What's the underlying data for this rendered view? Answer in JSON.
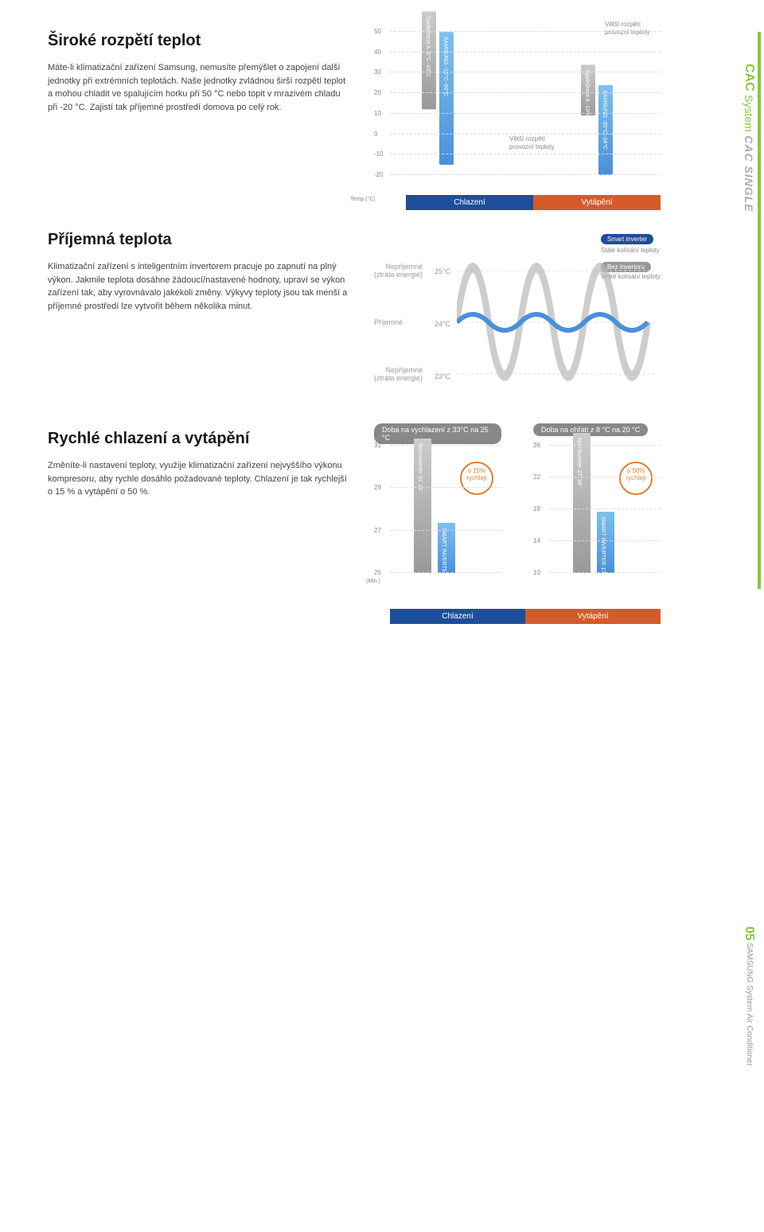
{
  "sidebar": {
    "cac": "CAC",
    "system": "System",
    "cacsingle": "CAC SINGLE"
  },
  "section1": {
    "title": "Široké rozpětí teplot",
    "body": "Máte-li klimatizační zařízení Samsung, nemusíte přemýšlet o zapojení další jednotky při extrémních teplotách. Naše jednotky zvládnou širší rozpětí teplot a mohou chladit ve spalujícím horku při 50 °C nebo topit v mrazivém chladu při -20 °C. Zajistí tak příjemné prostředí domova po celý rok.",
    "chart": {
      "type": "bar",
      "yticks": [
        -20,
        -10,
        0,
        10,
        20,
        30,
        40,
        50
      ],
      "yaxis_label": "Temp.(°C)",
      "anno_top": "Větší rozpětí provozní teploty",
      "anno_mid": "Větší rozpětí provozní teploty",
      "cooling": {
        "compA": {
          "label": "Společnost A",
          "range": "-5°C~43°C",
          "low": -5,
          "high": 43,
          "color": "#aaaaaa"
        },
        "samsung": {
          "label": "SAMSUNG",
          "range": "-15°C~50°C",
          "low": -15,
          "high": 50,
          "color": "#4a90d9"
        }
      },
      "heating": {
        "compA": {
          "label": "Společnost A",
          "range": "-10°C~15°C",
          "low": -10,
          "high": 15,
          "color": "#aaaaaa"
        },
        "samsung": {
          "label": "SAMSUNG",
          "range": "-20°C~24°C",
          "low": -20,
          "high": 24,
          "color": "#4a90d9"
        }
      },
      "legend_cooling": "Chlazení",
      "legend_heating": "Vytápění",
      "legend_cooling_bg": "#1d4e9a",
      "legend_heating_bg": "#d45a2a"
    }
  },
  "section2": {
    "title": "Příjemná teplota",
    "body": "Klimatizační zařízení s inteligentním invertorem pracuje po zapnutí na plný výkon. Jakmile teplota dosáhne žádoucí/nastavené hodnoty, upraví se výkon zařízení tak, aby vyrovnávalo jakékoli změny. Výkyvy teploty jsou tak menší a příjemné prostředí lze vytvořit během několika minut.",
    "chart": {
      "smart_pill": "Smart inverter",
      "smart_desc": "Stálé kolísání teploty",
      "noninv_pill": "Bez invertoru",
      "noninv_desc": "Velké kolísání teploty",
      "rows": {
        "top": {
          "label": "Nepříjemné",
          "sub": "(ztráta energie)",
          "temp": "25°C"
        },
        "mid": {
          "label": "Příjemné",
          "temp": "24°C"
        },
        "bot": {
          "label": "Nepříjemné",
          "sub": "(ztráta energie)",
          "temp": "23°C"
        }
      },
      "wave_noninv_color": "#b8b8b8",
      "wave_smart_color": "#4a90d9"
    }
  },
  "section3": {
    "title": "Rychlé chlazení a vytápění",
    "body": "Změníte-li nastavení teploty, využije klimatizační zařízení nejvyššího výkonu kompresoru, aby rychle dosáhlo požadované teploty. Chlazení je tak rychlejší o 15 % a vytápění o 50 %.",
    "chart": {
      "cooling_title": "Doba na vychlazení z 33°C na 25 °C",
      "heating_title": "Doba na ohřátí z 8 °C na 20 °C",
      "yaxis_label": "(Min.)",
      "cooling": {
        "yticks": [
          25,
          27,
          29,
          31
        ],
        "noninv": {
          "label": "Non-inverter",
          "value_label": "31' 21\"",
          "value": 31.35
        },
        "smart": {
          "label": "SMART INVERTER",
          "value_label": "27' 21\"",
          "value": 27.35
        },
        "badge": "o 15% rychleji"
      },
      "heating": {
        "yticks": [
          10,
          14,
          18,
          22,
          26
        ],
        "noninv": {
          "label": "Non-inverter",
          "value_label": "27' 34\"",
          "value": 27.57
        },
        "smart": {
          "label": "SMART INVERTER",
          "value_label": "17' 41\"",
          "value": 17.68
        },
        "badge": "o 50% rychleji"
      },
      "legend_cooling": "Chlazení",
      "legend_heating": "Vytápění"
    }
  },
  "footer": {
    "num": "05",
    "brand": "SAMSUNG",
    "line": "System Air Conditioner"
  }
}
